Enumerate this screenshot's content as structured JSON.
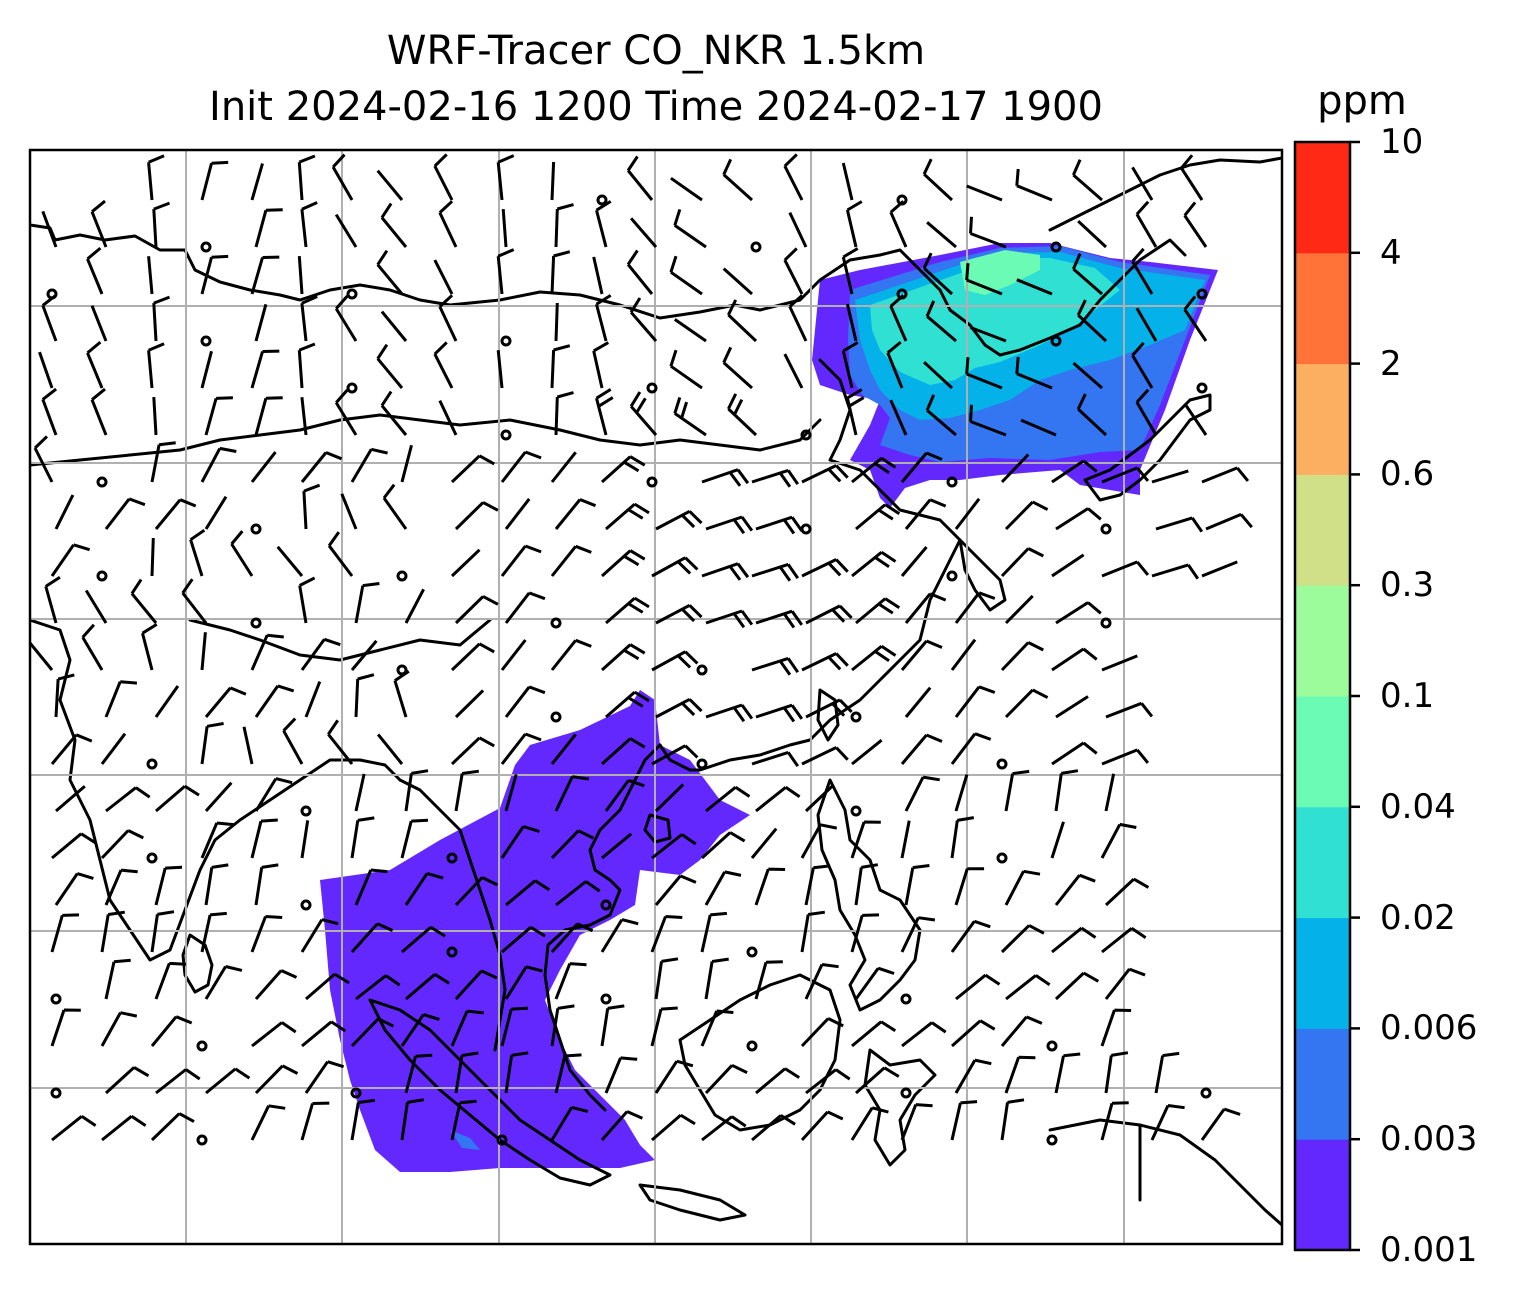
{
  "title": {
    "line1": "WRF-Tracer CO_NKR 1.5km",
    "line2": "Init 2024-02-16 1200 Time 2024-02-17 1900"
  },
  "colorbar": {
    "unit": "ppm",
    "levels": [
      "0.001",
      "0.003",
      "0.006",
      "0.02",
      "0.04",
      "0.1",
      "0.3",
      "0.6",
      "2",
      "4",
      "10"
    ],
    "colors": [
      "#6228fd",
      "#3475f1",
      "#04b1e9",
      "#30e0d2",
      "#6cfbb5",
      "#9cfb9b",
      "#cfe089",
      "#fdaf61",
      "#ff7339",
      "#ff2916"
    ]
  },
  "map": {
    "graticule": "on",
    "coastlines": "on",
    "wind_barbs": "on",
    "plume_colors": {
      "trace": "#6228fd",
      "low": "#3475f1",
      "mid": "#04b1e9",
      "high": "#30e0d2",
      "peak": "#6cfbb5"
    }
  }
}
